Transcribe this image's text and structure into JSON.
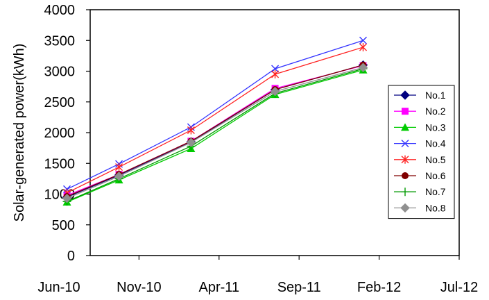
{
  "chart_data": {
    "type": "line",
    "ylabel": "Solar-generated power(kWh)",
    "xlabel": "",
    "ylim": [
      0,
      4000
    ],
    "yticks": [
      0,
      500,
      1000,
      1500,
      2000,
      2500,
      3000,
      3500,
      4000
    ],
    "x_tick_labels": [
      "Jun-10",
      "Nov-10",
      "Apr-11",
      "Sep-11",
      "Feb-12",
      "Jul-12"
    ],
    "x_tick_months": [
      0,
      5,
      10,
      15,
      20,
      25
    ],
    "x_range_months": [
      0,
      25
    ],
    "x": [
      0.5,
      3.75,
      8.25,
      13.5,
      19.0
    ],
    "grid": false,
    "legend_position": "right",
    "series": [
      {
        "name": "No.1",
        "color": "#000080",
        "marker": "diamond",
        "values": [
          950,
          1310,
          1850,
          2700,
          3100
        ]
      },
      {
        "name": "No.2",
        "color": "#ff00ff",
        "marker": "square",
        "values": [
          980,
          1320,
          1860,
          2720,
          3090
        ]
      },
      {
        "name": "No.3",
        "color": "#00cc00",
        "marker": "triangle",
        "values": [
          870,
          1230,
          1740,
          2620,
          3020
        ]
      },
      {
        "name": "No.4",
        "color": "#3333ff",
        "marker": "x",
        "values": [
          1080,
          1490,
          2090,
          3040,
          3500
        ]
      },
      {
        "name": "No.5",
        "color": "#ff2222",
        "marker": "star",
        "values": [
          1020,
          1440,
          2040,
          2950,
          3390
        ]
      },
      {
        "name": "No.6",
        "color": "#800000",
        "marker": "circle",
        "values": [
          960,
          1320,
          1860,
          2700,
          3100
        ]
      },
      {
        "name": "No.7",
        "color": "#009900",
        "marker": "plus",
        "values": [
          880,
          1250,
          1780,
          2640,
          3040
        ]
      },
      {
        "name": "No.8",
        "color": "#909090",
        "marker": "diamond",
        "values": [
          930,
          1290,
          1840,
          2670,
          3060
        ]
      }
    ]
  }
}
